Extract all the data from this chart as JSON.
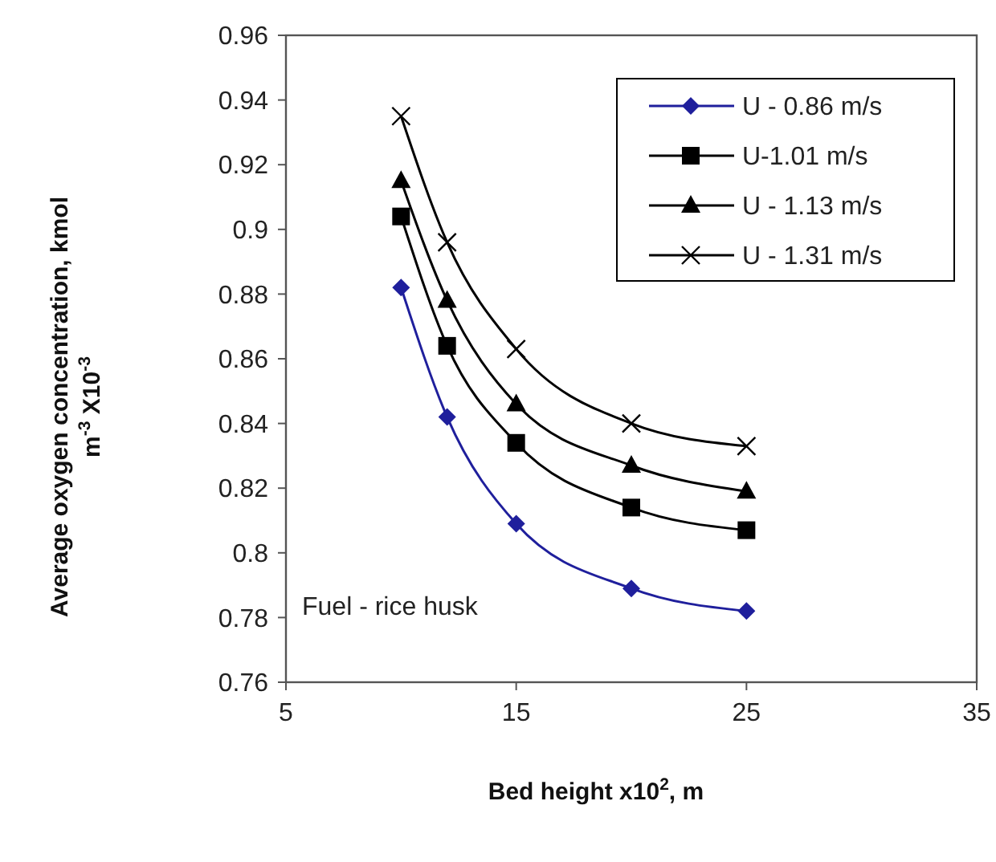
{
  "chart_data": {
    "type": "line",
    "xlabel": "Bed height x10$^{2}$, m",
    "ylabel": "Average  oxygen concentration, kmol m$^{-3}$ X10$^{-3}$",
    "x": [
      10,
      12,
      15,
      20,
      25
    ],
    "series": [
      {
        "name": "U - 0.86 m/s",
        "color": "#1f1f9c",
        "marker": "diamond",
        "values": [
          0.882,
          0.842,
          0.809,
          0.789,
          0.782
        ]
      },
      {
        "name": "U-1.01 m/s",
        "color": "#000000",
        "marker": "square",
        "values": [
          0.904,
          0.864,
          0.834,
          0.814,
          0.807
        ]
      },
      {
        "name": "U - 1.13 m/s",
        "color": "#000000",
        "marker": "triangle",
        "values": [
          0.915,
          0.878,
          0.846,
          0.827,
          0.819
        ]
      },
      {
        "name": "U - 1.31 m/s",
        "color": "#000000",
        "marker": "cross",
        "values": [
          0.935,
          0.896,
          0.863,
          0.84,
          0.833
        ]
      }
    ],
    "xlim": [
      5,
      35
    ],
    "xticks": [
      5,
      15,
      25,
      35
    ],
    "ylim": [
      0.76,
      0.96
    ],
    "yticks": [
      0.76,
      0.78,
      {
        "value": 0.8,
        "label": "0.8"
      },
      0.82,
      0.84,
      0.86,
      0.88,
      {
        "value": 0.9,
        "label": "0.9"
      },
      0.92,
      0.94,
      0.96
    ],
    "annotations": [
      "Fuel - rice husk"
    ],
    "legend": "top right",
    "grid": false,
    "line_style": "solid"
  }
}
